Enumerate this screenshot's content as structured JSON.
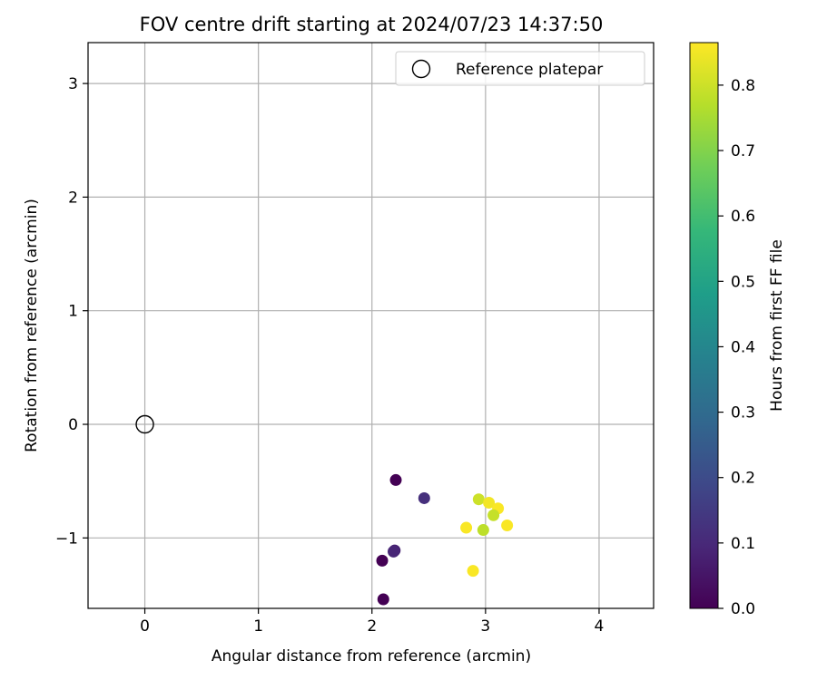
{
  "chart_data": {
    "type": "scatter",
    "title": "FOV centre drift starting at 2024/07/23 14:37:50",
    "xlabel": "Angular distance from reference (arcmin)",
    "ylabel": "Rotation from reference (arcmin)",
    "xlim": [
      -0.5,
      4.48
    ],
    "ylim": [
      -1.62,
      3.36
    ],
    "xticks": [
      0,
      1,
      2,
      3,
      4
    ],
    "yticks": [
      -1,
      0,
      1,
      2,
      3
    ],
    "xtick_labels": [
      "0",
      "1",
      "2",
      "3",
      "4"
    ],
    "ytick_labels": [
      "−1",
      "0",
      "1",
      "2",
      "3"
    ],
    "grid": true,
    "legend": {
      "position": "upper-right",
      "label": "Reference platepar"
    },
    "reference": {
      "x": 0,
      "y": 0
    },
    "points": [
      {
        "x": 2.21,
        "y": -0.49,
        "hours": 0.0
      },
      {
        "x": 2.09,
        "y": -1.2,
        "hours": 0.0
      },
      {
        "x": 2.1,
        "y": -1.54,
        "hours": 0.0
      },
      {
        "x": 2.2,
        "y": -1.11,
        "hours": 0.08
      },
      {
        "x": 2.19,
        "y": -1.12,
        "hours": 0.09
      },
      {
        "x": 2.46,
        "y": -0.65,
        "hours": 0.12
      },
      {
        "x": 2.94,
        "y": -0.66,
        "hours": 0.8
      },
      {
        "x": 3.03,
        "y": -0.69,
        "hours": 0.85
      },
      {
        "x": 3.11,
        "y": -0.74,
        "hours": 0.86
      },
      {
        "x": 3.07,
        "y": -0.8,
        "hours": 0.79
      },
      {
        "x": 2.83,
        "y": -0.91,
        "hours": 0.86
      },
      {
        "x": 2.98,
        "y": -0.93,
        "hours": 0.78
      },
      {
        "x": 3.19,
        "y": -0.89,
        "hours": 0.86
      },
      {
        "x": 2.89,
        "y": -1.29,
        "hours": 0.86
      }
    ],
    "colorbar": {
      "label": "Hours from first FF file",
      "range": [
        0,
        0.865
      ],
      "ticks": [
        0.0,
        0.1,
        0.2,
        0.3,
        0.4,
        0.5,
        0.6,
        0.7,
        0.8
      ],
      "tick_labels": [
        "0.0",
        "0.1",
        "0.2",
        "0.3",
        "0.4",
        "0.5",
        "0.6",
        "0.7",
        "0.8"
      ],
      "colormap": "viridis",
      "colormap_stops": [
        "#440154",
        "#482878",
        "#3e4989",
        "#31688e",
        "#26828e",
        "#1f9e89",
        "#35b779",
        "#6ece58",
        "#b5de2b",
        "#fde725"
      ]
    }
  }
}
